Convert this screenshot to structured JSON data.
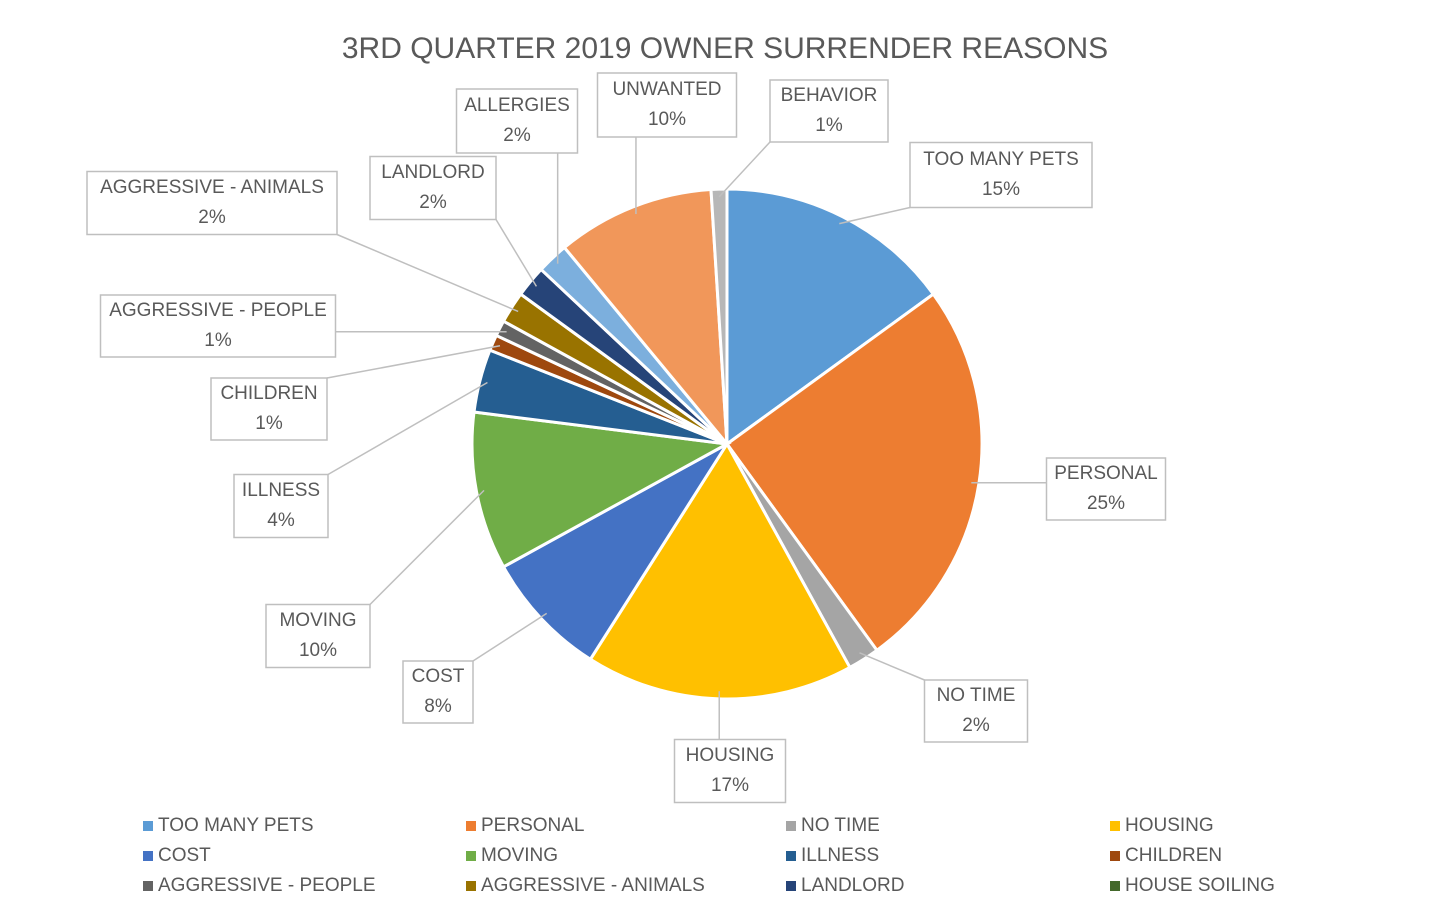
{
  "chart_data": {
    "type": "pie",
    "title": "3RD QUARTER 2019 OWNER SURRENDER REASONS",
    "categories": [
      "TOO MANY PETS",
      "PERSONAL",
      "NO TIME",
      "HOUSING",
      "COST",
      "MOVING",
      "ILLNESS",
      "CHILDREN",
      "AGGRESSIVE - PEOPLE",
      "AGGRESSIVE - ANIMALS",
      "LANDLORD",
      "HOUSE SOILING",
      "ALLERGIES",
      "UNWANTED",
      "BEHAVIOR"
    ],
    "values": [
      15,
      25,
      2,
      17,
      8,
      10,
      4,
      1,
      1,
      2,
      2,
      0,
      2,
      10,
      1
    ],
    "value_labels": [
      "15%",
      "25%",
      "2%",
      "17%",
      "8%",
      "10%",
      "4%",
      "1%",
      "1%",
      "2%",
      "2%",
      null,
      "2%",
      "10%",
      "1%"
    ],
    "colors": [
      "#5b9bd5",
      "#ed7d31",
      "#a5a5a5",
      "#ffc000",
      "#4472c4",
      "#70ad47",
      "#255e91",
      "#9e480e",
      "#636363",
      "#997300",
      "#264478",
      "#43682b",
      "#7cafdd",
      "#f1975a",
      "#b7b7b7"
    ],
    "legend": "bottom"
  }
}
